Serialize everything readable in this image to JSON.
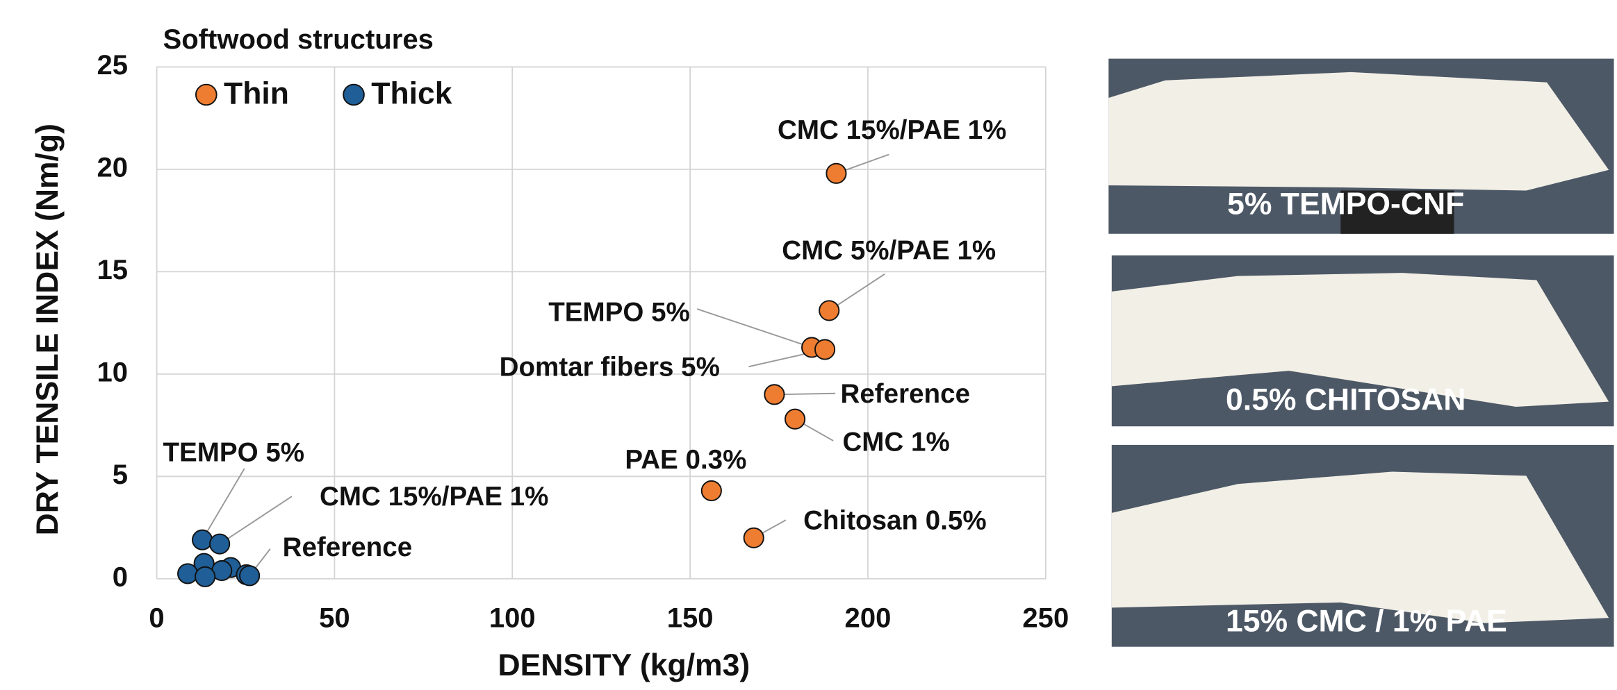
{
  "chart_data": {
    "type": "scatter",
    "title": "Softwood structures",
    "xlabel": "DENSITY (kg/m3)",
    "ylabel": "DRY TENSILE INDEX (Nm/g)",
    "xlim": [
      0,
      250
    ],
    "xticks": [
      0,
      50,
      100,
      150,
      200,
      250
    ],
    "ylim": [
      0,
      25
    ],
    "yticks": [
      0,
      5,
      10,
      15,
      20,
      25
    ],
    "grid": true,
    "legend": "upper left",
    "series": [
      {
        "name": "Thin",
        "color": "#ee7d31",
        "x": [
          191.1,
          189.1,
          184.2,
          187.9,
          173.7,
          179.5,
          156.0,
          167.9
        ],
        "values": [
          19.8,
          13.1,
          11.3,
          11.2,
          9.0,
          7.8,
          4.3,
          2.0
        ]
      },
      {
        "name": "Thick",
        "color": "#1f5e96",
        "x": [
          12.8,
          17.7,
          13.3,
          20.8,
          18.3,
          8.7,
          13.6,
          25.2,
          26.1
        ],
        "values": [
          1.9,
          1.7,
          0.75,
          0.55,
          0.4,
          0.25,
          0.1,
          0.2,
          0.15
        ]
      }
    ],
    "annotations": [
      "CMC 15%/PAE 1%",
      "CMC 5%/PAE 1%",
      "TEMPO 5%",
      "Domtar fibers 5%",
      "Reference",
      "CMC 1%",
      "PAE 0.3%",
      "Chitosan 0.5%",
      "TEMPO 5%",
      "CMC 15%/PAE 1%",
      "Reference"
    ]
  },
  "photos": [
    "5% TEMPO-CNF",
    "0.5% CHITOSAN",
    "15% CMC / 1% PAE"
  ]
}
